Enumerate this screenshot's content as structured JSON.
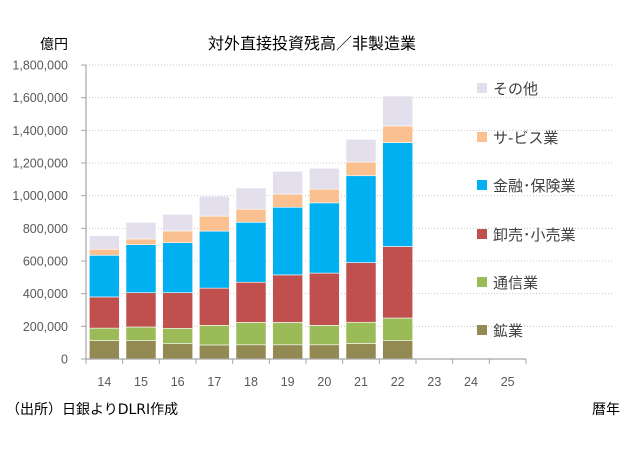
{
  "chart_data": {
    "type": "bar",
    "stacked": true,
    "title": "対外直接投資残高／非製造業",
    "ylabel": "億円",
    "xlabel": "暦年",
    "source_note": "（出所）日銀よりDLRI作成",
    "ylim": [
      0,
      1800000
    ],
    "yticks": [
      0,
      200000,
      400000,
      600000,
      800000,
      1000000,
      1200000,
      1400000,
      1600000,
      1800000
    ],
    "ytick_labels": [
      "0",
      "200,000",
      "400,000",
      "600,000",
      "800,000",
      "1,000,000",
      "1,200,000",
      "1,400,000",
      "1,600,000",
      "1,800,000"
    ],
    "grid": true,
    "legend_position": "right",
    "categories": [
      "14",
      "15",
      "16",
      "17",
      "18",
      "19",
      "20",
      "21",
      "22",
      "23",
      "24",
      "25"
    ],
    "series": [
      {
        "name": "鉱業",
        "color": "#938953",
        "values": [
          113000,
          112000,
          94000,
          86000,
          87000,
          87000,
          87000,
          95000,
          112000,
          null,
          null,
          null
        ]
      },
      {
        "name": "通信業",
        "color": "#9BBB59",
        "values": [
          76000,
          84000,
          94000,
          120000,
          137000,
          137000,
          119000,
          130000,
          139000,
          null,
          null,
          null
        ]
      },
      {
        "name": "卸売･小売業",
        "color": "#C0504D",
        "values": [
          191000,
          210000,
          218000,
          228000,
          246000,
          291000,
          320000,
          365000,
          438000,
          null,
          null,
          null
        ]
      },
      {
        "name": "金融･保険業",
        "color": "#00B0F0",
        "values": [
          255000,
          294000,
          306000,
          349000,
          367000,
          414000,
          430000,
          532000,
          636000,
          null,
          null,
          null
        ]
      },
      {
        "name": "サ-ビス業",
        "color": "#FAC090",
        "values": [
          37000,
          35000,
          72000,
          92000,
          80000,
          81000,
          84000,
          84000,
          102000,
          null,
          null,
          null
        ]
      },
      {
        "name": "その他",
        "color": "#E4DFEC",
        "values": [
          83000,
          102000,
          102000,
          122000,
          130000,
          139000,
          128000,
          139000,
          183000,
          null,
          null,
          null
        ]
      }
    ],
    "legend_order": [
      "その他",
      "サ-ビス業",
      "金融･保険業",
      "卸売･小売業",
      "通信業",
      "鉱業"
    ]
  }
}
